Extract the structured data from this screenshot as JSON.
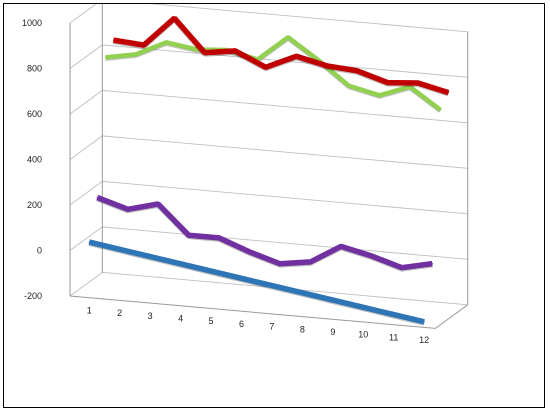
{
  "chart_data": {
    "type": "line",
    "style": "3d-line",
    "categories": [
      "1",
      "2",
      "3",
      "4",
      "5",
      "6",
      "7",
      "8",
      "9",
      "10",
      "11",
      "12"
    ],
    "ylim": [
      -200,
      1000
    ],
    "yticks": [
      -200,
      0,
      200,
      400,
      600,
      800,
      1000
    ],
    "grid": true,
    "legend": "none",
    "series": [
      {
        "color": "#2E75B6",
        "values": [
          30,
          10,
          -10,
          -30,
          -50,
          -70,
          -90,
          -110,
          -130,
          -150,
          -170,
          -190
        ]
      },
      {
        "color": "#7030A0",
        "values": [
          200,
          160,
          195,
          70,
          70,
          20,
          -20,
          0,
          80,
          50,
          10,
          40
        ]
      },
      {
        "color": "#92D050",
        "values": [
          790,
          815,
          880,
          860,
          870,
          840,
          950,
          860,
          760,
          730,
          780,
          690
        ]
      },
      {
        "color": "#C00000",
        "values": [
          840,
          830,
          960,
          820,
          840,
          780,
          840,
          810,
          800,
          760,
          770,
          740
        ]
      }
    ]
  }
}
